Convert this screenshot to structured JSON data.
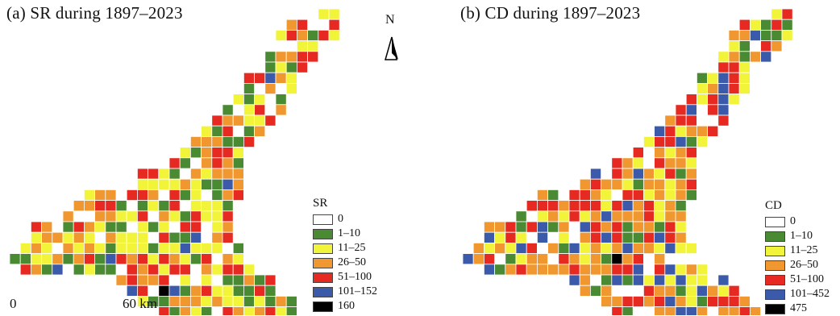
{
  "panel_a": {
    "title": "(a) SR during 1897–2023",
    "legend_title": "SR",
    "legend": [
      {
        "label": "0",
        "color": "#ffffff"
      },
      {
        "label": "1–10",
        "color": "#4a8a33"
      },
      {
        "label": "11–25",
        "color": "#f2f43a"
      },
      {
        "label": "26–50",
        "color": "#f0982f"
      },
      {
        "label": "51–100",
        "color": "#e62a21"
      },
      {
        "label": "101–152",
        "color": "#3c5aaa"
      },
      {
        "label": "160",
        "color": "#000000"
      }
    ]
  },
  "panel_b": {
    "title": "(b) CD during 1897–2023",
    "legend_title": "CD",
    "legend": [
      {
        "label": "0",
        "color": "#ffffff"
      },
      {
        "label": "1–10",
        "color": "#4a8a33"
      },
      {
        "label": "11–25",
        "color": "#f2f43a"
      },
      {
        "label": "26–50",
        "color": "#f0982f"
      },
      {
        "label": "51–100",
        "color": "#e62a21"
      },
      {
        "label": "101–452",
        "color": "#3c5aaa"
      },
      {
        "label": "475",
        "color": "#000000"
      }
    ]
  },
  "north_arrow": {
    "label": "N",
    "icon": "north-arrow-icon"
  },
  "scale_bar": {
    "start_label": "0",
    "end_label": "60 km"
  }
}
